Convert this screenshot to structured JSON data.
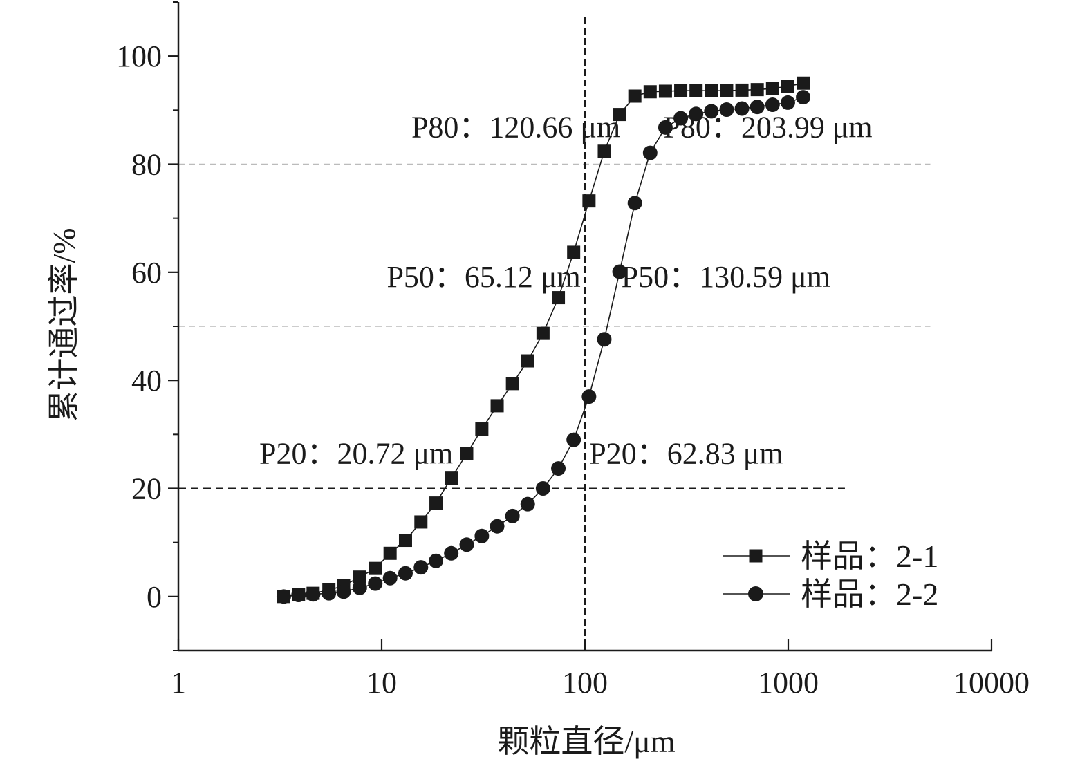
{
  "chart_data": {
    "type": "scatter",
    "xlabel": "颗粒直径/μm",
    "ylabel": "累计通过率/%",
    "x_scale": "log",
    "xlim": [
      1,
      10000
    ],
    "ylim": [
      -10,
      110
    ],
    "x_ticks": [
      1,
      10,
      100,
      1000,
      10000
    ],
    "x_tick_labels": [
      "1",
      "10",
      "100",
      "1000",
      "10000"
    ],
    "y_ticks": [
      0,
      20,
      40,
      60,
      80,
      100
    ],
    "y_tick_labels": [
      "0",
      "20",
      "40",
      "60",
      "80",
      "100"
    ],
    "grid": false,
    "legend_position": "bottom-right",
    "colors": {
      "series": "#1a1a1a",
      "reference_light": "#bbbbbb",
      "reference_dark": "#1a1a1a"
    },
    "series": [
      {
        "name": "样品：2-1",
        "marker": "square",
        "x": [
          3.3,
          3.9,
          4.6,
          5.5,
          6.5,
          7.8,
          9.3,
          11.0,
          13.1,
          15.6,
          18.5,
          22.0,
          26.2,
          31.1,
          37.0,
          44.0,
          52.3,
          62.2,
          74.0,
          88.0,
          104.7,
          124.5,
          148.0,
          176.0,
          209.3,
          248.9,
          296.0,
          352.0,
          418.6,
          497.8,
          592.0,
          704.0,
          837.2,
          995.6,
          1184.0
        ],
        "y": [
          0,
          0.4,
          0.6,
          1.2,
          2.0,
          3.6,
          5.2,
          8.0,
          10.4,
          13.8,
          17.3,
          21.9,
          26.4,
          31.0,
          35.3,
          39.4,
          43.6,
          48.7,
          55.3,
          63.7,
          73.2,
          82.4,
          89.2,
          92.6,
          93.4,
          93.5,
          93.6,
          93.6,
          93.6,
          93.6,
          93.7,
          93.8,
          94.0,
          94.4,
          95.0
        ]
      },
      {
        "name": "样品：2-2",
        "marker": "circle",
        "x": [
          3.3,
          3.9,
          4.6,
          5.5,
          6.5,
          7.8,
          9.3,
          11.0,
          13.1,
          15.6,
          18.5,
          22.0,
          26.2,
          31.1,
          37.0,
          44.0,
          52.3,
          62.2,
          74.0,
          88.0,
          104.7,
          124.5,
          148.0,
          176.0,
          209.3,
          248.9,
          296.0,
          352.0,
          418.6,
          497.8,
          592.0,
          704.0,
          837.2,
          995.6,
          1184.0
        ],
        "y": [
          0,
          0.3,
          0.4,
          0.6,
          0.9,
          1.6,
          2.4,
          3.4,
          4.3,
          5.4,
          6.6,
          8.0,
          9.6,
          11.2,
          13.0,
          14.9,
          17.1,
          20.0,
          23.7,
          29.0,
          37.0,
          47.6,
          60.1,
          72.8,
          82.1,
          86.8,
          88.5,
          89.3,
          89.8,
          90.1,
          90.3,
          90.6,
          91.0,
          91.4,
          92.4
        ]
      }
    ],
    "reference_lines": [
      {
        "kind": "horizontal",
        "y": 80,
        "x_end": 5000,
        "style": "dashed-light"
      },
      {
        "kind": "horizontal",
        "y": 50,
        "x_end": 5000,
        "style": "dashed-light"
      },
      {
        "kind": "horizontal",
        "y": 20,
        "x_end": 1900,
        "style": "dashed-dark"
      },
      {
        "kind": "vertical",
        "x": 100,
        "style": "dotted-dark"
      }
    ],
    "annotations": [
      {
        "text": "P80：120.66 μm",
        "x": 14,
        "y": 85,
        "anchor": "start"
      },
      {
        "text": "P80：203.99 μm",
        "x": 243,
        "y": 85,
        "anchor": "start"
      },
      {
        "text": "P50：65.12 μm",
        "x": 10.6,
        "y": 57.3,
        "anchor": "start"
      },
      {
        "text": "P50：130.59 μm",
        "x": 151,
        "y": 57.3,
        "anchor": "start"
      },
      {
        "text": "P20：20.72 μm",
        "x": 2.5,
        "y": 24.6,
        "anchor": "start"
      },
      {
        "text": "P20：62.83 μm",
        "x": 105,
        "y": 24.6,
        "anchor": "start"
      }
    ]
  }
}
